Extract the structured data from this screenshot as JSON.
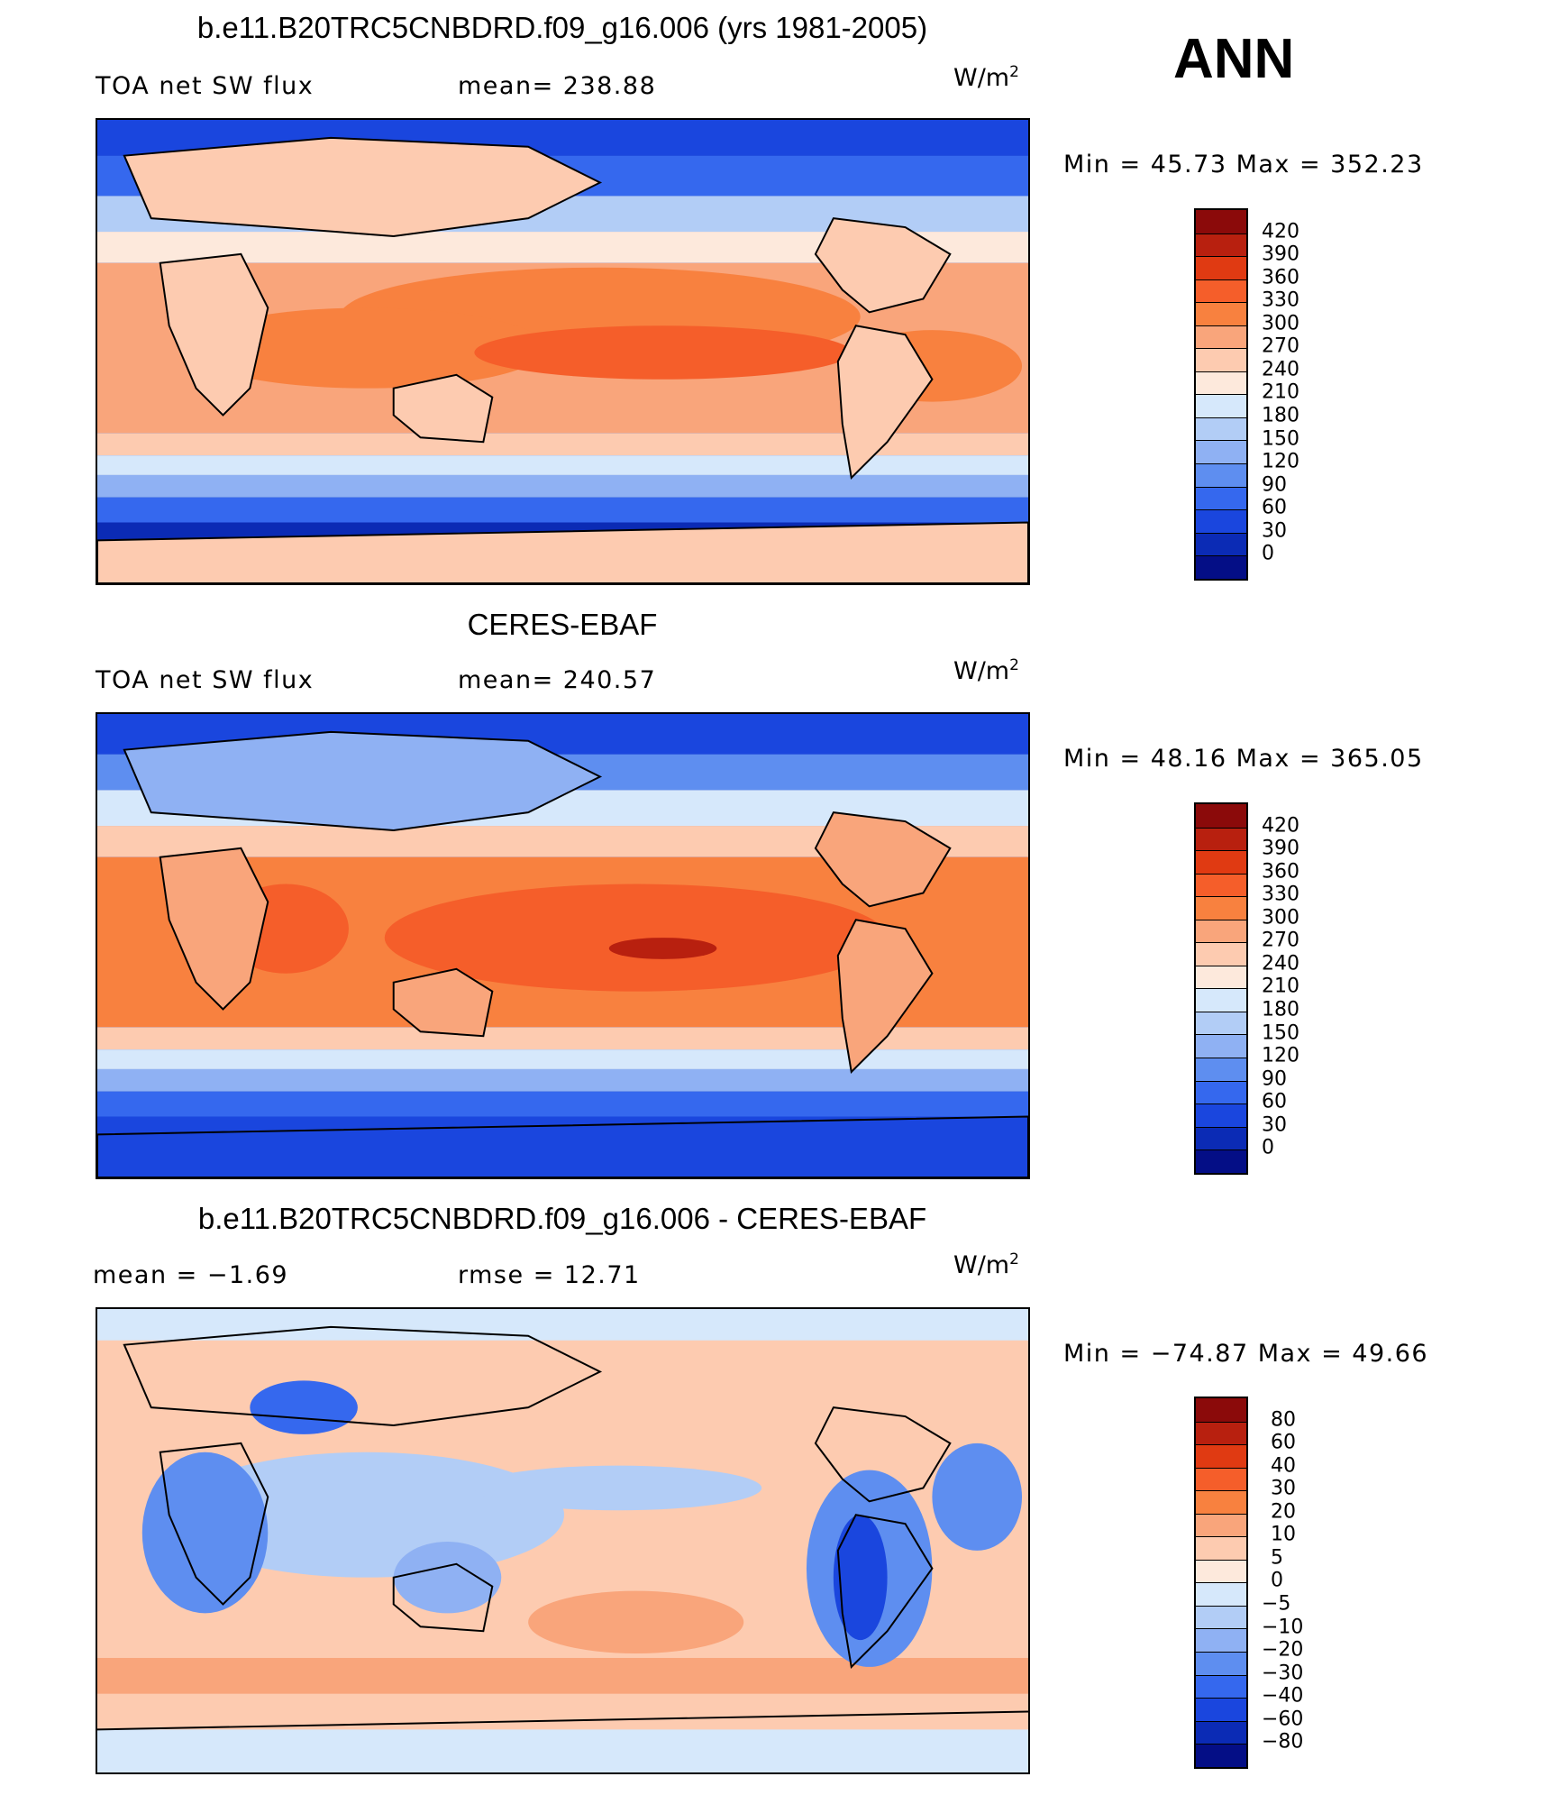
{
  "season": "ANN",
  "units_base": "W/m",
  "units_exp": "2",
  "panels": [
    {
      "title": "b.e11.B20TRC5CNBDRD.f09_g16.006 (yrs 1981-2005)",
      "left": "TOA  net  SW  flux",
      "middle": "mean=  238.88",
      "minmax": "Min  =    45.73  Max  =  352.23",
      "kind": "abs"
    },
    {
      "title": "CERES-EBAF",
      "left": "TOA  net  SW  flux",
      "middle": "mean=  240.57",
      "minmax": "Min  =    48.16  Max  =  365.05",
      "kind": "abs"
    },
    {
      "title": "b.e11.B20TRC5CNBDRD.f09_g16.006 - CERES-EBAF",
      "left": "mean  =     −1.69",
      "middle": "rmse  =    12.71",
      "minmax": "Min  =  −74.87  Max  =     49.66",
      "kind": "diff"
    }
  ],
  "colorbars": {
    "abs": {
      "levels": [
        "420",
        "390",
        "360",
        "330",
        "300",
        "270",
        "240",
        "210",
        "180",
        "150",
        "120",
        "90",
        "60",
        "30",
        "0"
      ],
      "colors": [
        "#8b0a0a",
        "#b8200f",
        "#e03a12",
        "#f55e2a",
        "#f8813f",
        "#f9a57b",
        "#fdcbb0",
        "#fde9dc",
        "#d6e8fb",
        "#b2cdf6",
        "#8fb1f3",
        "#5e8ef0",
        "#3568ee",
        "#1a46de",
        "#0b2bb5",
        "#040e86"
      ]
    },
    "diff": {
      "levels": [
        "80",
        "60",
        "40",
        "30",
        "20",
        "10",
        "5",
        "0",
        "−5",
        "−10",
        "−20",
        "−30",
        "−40",
        "−60",
        "−80"
      ],
      "colors": [
        "#8b0a0a",
        "#b8200f",
        "#e03a12",
        "#f55e2a",
        "#f8813f",
        "#f9a57b",
        "#fdcbb0",
        "#fde9dc",
        "#d6e8fb",
        "#b2cdf6",
        "#8fb1f3",
        "#5e8ef0",
        "#3568ee",
        "#1a46de",
        "#0b2bb5",
        "#040e86"
      ]
    }
  }
}
